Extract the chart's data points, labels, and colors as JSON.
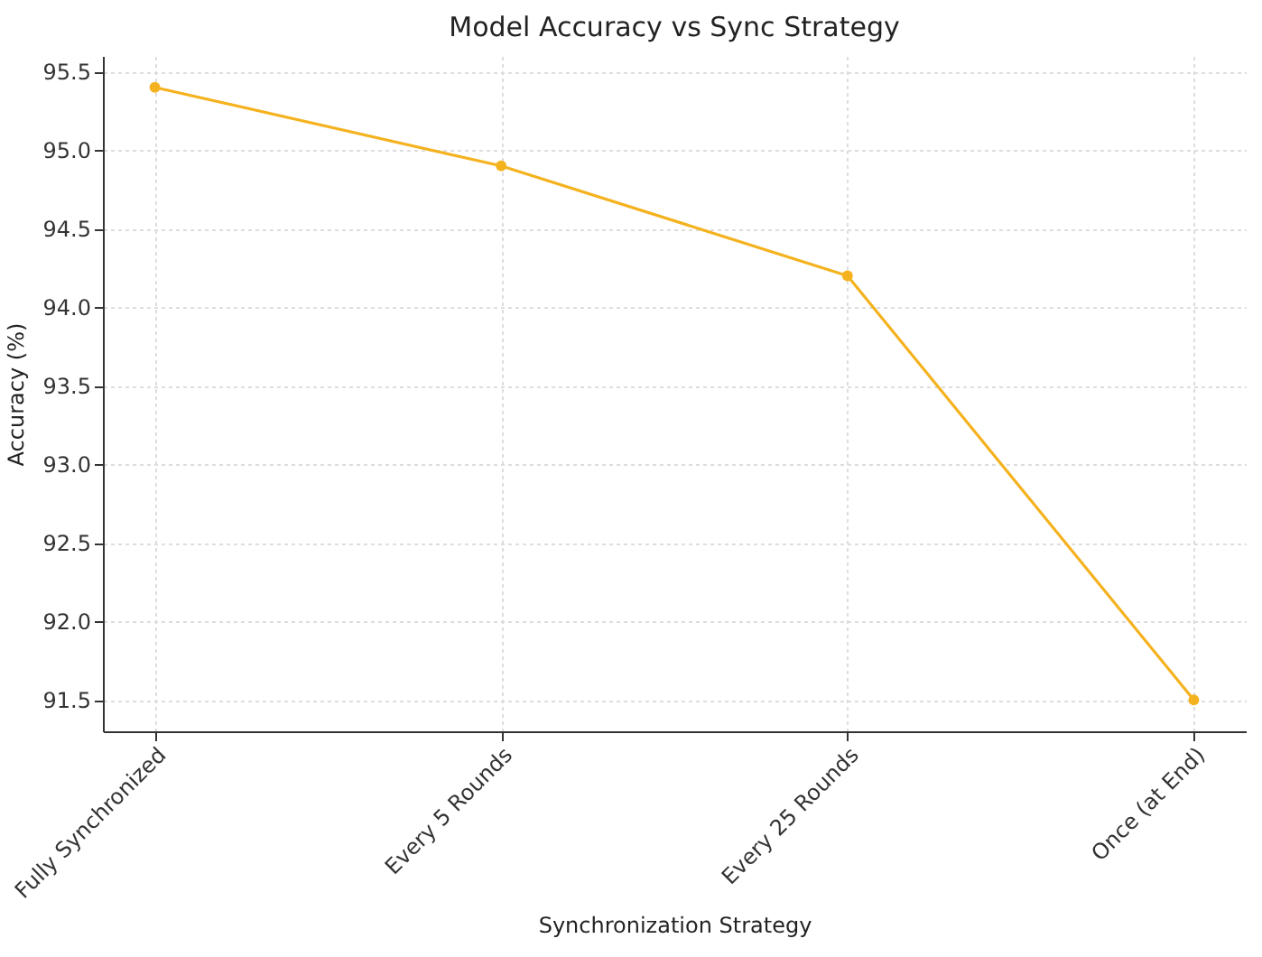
{
  "chart_data": {
    "type": "line",
    "title": "Model Accuracy vs Sync Strategy",
    "xlabel": "Synchronization Strategy",
    "ylabel": "Accuracy (%)",
    "categories": [
      "Fully Synchronized",
      "Every 5 Rounds",
      "Every 25 Rounds",
      "Once (at End)"
    ],
    "series": [
      {
        "color": "#f5b21f",
        "values": [
          95.4,
          94.9,
          94.2,
          91.5
        ]
      }
    ],
    "ylim": [
      91.3,
      95.6
    ],
    "yticks": [
      {
        "value": 91.5,
        "label": "91.5"
      },
      {
        "value": 92,
        "label": "92.0"
      },
      {
        "value": 92.5,
        "label": "92.5"
      },
      {
        "value": 93,
        "label": "93.0"
      },
      {
        "value": 93.5,
        "label": "93.5"
      },
      {
        "value": 94,
        "label": "94.0"
      },
      {
        "value": 94.5,
        "label": "94.5"
      },
      {
        "value": 95,
        "label": "95.0"
      },
      {
        "value": 95.5,
        "label": "95.5"
      }
    ],
    "grid": true,
    "marker": "circle",
    "line_style": "solid"
  }
}
